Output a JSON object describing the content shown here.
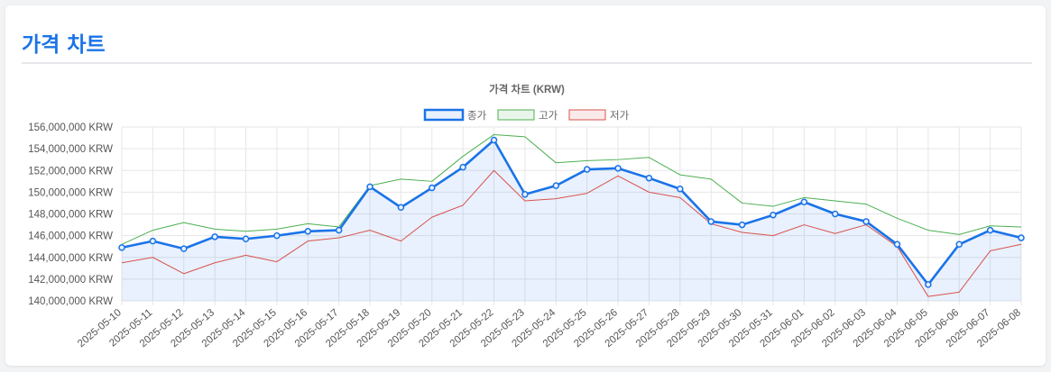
{
  "page": {
    "title": "가격 차트"
  },
  "chart_data": {
    "type": "line",
    "title": "가격 차트 (KRW)",
    "x": [
      "2025-05-10",
      "2025-05-11",
      "2025-05-12",
      "2025-05-13",
      "2025-05-14",
      "2025-05-15",
      "2025-05-16",
      "2025-05-17",
      "2025-05-18",
      "2025-05-19",
      "2025-05-20",
      "2025-05-21",
      "2025-05-22",
      "2025-05-23",
      "2025-05-24",
      "2025-05-25",
      "2025-05-26",
      "2025-05-27",
      "2025-05-28",
      "2025-05-29",
      "2025-05-30",
      "2025-05-31",
      "2025-06-01",
      "2025-06-02",
      "2025-06-03",
      "2025-06-04",
      "2025-06-05",
      "2025-06-06",
      "2025-06-07",
      "2025-06-08"
    ],
    "series": [
      {
        "name": "종가",
        "color": "#1a73e8",
        "fill": "rgba(26,115,232,0.1)",
        "values": [
          144900000,
          145500000,
          144800000,
          145900000,
          145700000,
          146000000,
          146400000,
          146500000,
          150500000,
          148600000,
          150400000,
          152300000,
          154800000,
          149800000,
          150600000,
          152100000,
          152200000,
          151300000,
          150300000,
          147300000,
          147000000,
          147900000,
          149100000,
          148000000,
          147300000,
          145200000,
          141500000,
          145200000,
          146500000,
          145800000
        ]
      },
      {
        "name": "고가",
        "color": "#4caf50",
        "fill": "rgba(76,175,80,0.12)",
        "values": [
          145200000,
          146500000,
          147200000,
          146600000,
          146400000,
          146600000,
          147100000,
          146800000,
          150600000,
          151200000,
          151000000,
          153300000,
          155300000,
          155100000,
          152700000,
          152900000,
          153000000,
          153200000,
          151600000,
          151200000,
          149000000,
          148700000,
          149500000,
          149200000,
          148900000,
          147600000,
          146500000,
          146100000,
          146900000,
          146800000
        ]
      },
      {
        "name": "저가",
        "color": "#d9534f",
        "fill": "rgba(217,83,79,0.12)",
        "values": [
          143500000,
          144000000,
          142500000,
          143500000,
          144200000,
          143600000,
          145500000,
          145800000,
          146500000,
          145500000,
          147700000,
          148800000,
          152000000,
          149200000,
          149400000,
          149900000,
          151500000,
          150000000,
          149500000,
          147100000,
          146300000,
          146000000,
          147000000,
          146200000,
          147000000,
          145000000,
          140400000,
          140800000,
          144600000,
          145200000
        ]
      }
    ],
    "y_ticks": [
      "156,000,000 KRW",
      "154,000,000 KRW",
      "152,000,000 KRW",
      "150,000,000 KRW",
      "148,000,000 KRW",
      "146,000,000 KRW",
      "144,000,000 KRW",
      "142,000,000 KRW",
      "140,000,000 KRW"
    ],
    "ylim": [
      140000000,
      156000000
    ],
    "grid": true,
    "legend_position": "top"
  }
}
